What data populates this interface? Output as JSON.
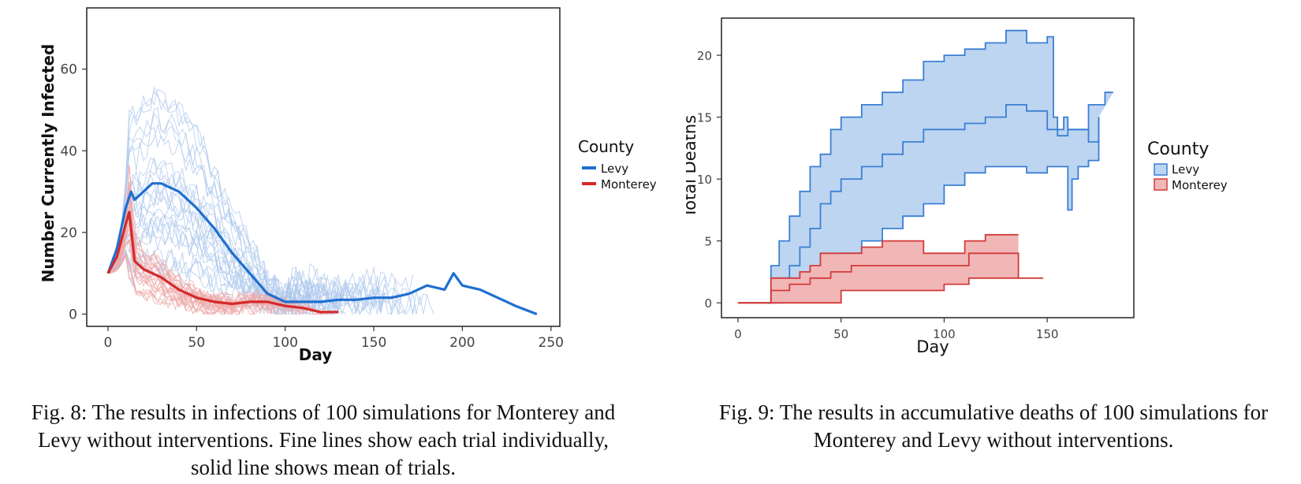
{
  "chart_data": [
    {
      "type": "line",
      "xlabel": "Day",
      "ylabel": "Number Currently Infected",
      "xlim": [
        -12,
        255
      ],
      "ylim": [
        -3,
        75
      ],
      "xticks": [
        "0",
        "50",
        "100",
        "150",
        "200",
        "250"
      ],
      "yticks": [
        "0",
        "20",
        "40",
        "60"
      ],
      "legend": {
        "title": "County",
        "position": "right",
        "entries": [
          "Levy",
          "Monterey"
        ]
      },
      "grid": false,
      "colors": {
        "Levy": "#1f6fd1",
        "Monterey": "#d42a2a",
        "Levy_trial": "#aec8ec",
        "Monterey_trial": "#eeabab"
      },
      "trials_per_county": 100,
      "series": [
        {
          "name": "Levy",
          "x": [
            0,
            5,
            10,
            13,
            15,
            20,
            25,
            30,
            40,
            50,
            60,
            70,
            80,
            90,
            100,
            110,
            120,
            130,
            140,
            150,
            160,
            170,
            180,
            190,
            195,
            200,
            210,
            220,
            230,
            242
          ],
          "y": [
            10,
            16,
            26,
            30,
            28,
            30,
            32,
            32,
            30,
            26,
            21,
            15,
            10,
            5,
            3,
            3,
            3,
            3.5,
            3.5,
            4,
            4,
            5,
            7,
            6,
            10,
            7,
            6,
            4,
            2,
            0
          ]
        },
        {
          "name": "Monterey",
          "x": [
            0,
            5,
            10,
            12,
            15,
            20,
            30,
            40,
            50,
            60,
            70,
            80,
            90,
            100,
            110,
            120,
            130
          ],
          "y": [
            10,
            14,
            22,
            25,
            13,
            11,
            9,
            6,
            4,
            3,
            2.5,
            3,
            3,
            2,
            1.5,
            0.5,
            0.5
          ]
        }
      ]
    },
    {
      "type": "area",
      "xlabel": "Day",
      "ylabel": "Total Deaths",
      "xlim": [
        -8,
        192
      ],
      "ylim": [
        -1.2,
        23
      ],
      "xticks": [
        "0",
        "50",
        "100",
        "150"
      ],
      "yticks": [
        "0",
        "5",
        "10",
        "15",
        "20"
      ],
      "legend": {
        "title": "County",
        "position": "right",
        "entries": [
          "Levy",
          "Monterey"
        ]
      },
      "grid": false,
      "colors": {
        "Levy": "#3b7fd4",
        "Levy_fill": "#bdd5f0",
        "Monterey": "#d23a3a",
        "Monterey_fill": "#f1b7b7"
      },
      "series": [
        {
          "name": "Levy",
          "upper": {
            "x": [
              14,
              16,
              20,
              25,
              30,
              35,
              40,
              45,
              50,
              60,
              70,
              80,
              90,
              100,
              110,
              120,
              130,
              140,
              150,
              153,
              155,
              158,
              160,
              162,
              165,
              170,
              175,
              178,
              182
            ],
            "y": [
              0,
              3,
              5,
              7,
              9,
              11,
              12,
              14,
              15,
              16,
              17,
              18,
              19.5,
              20,
              20.5,
              21,
              22,
              21,
              21.5,
              15,
              14,
              15,
              14,
              14,
              14,
              16,
              16,
              17,
              17
            ]
          },
          "mean": {
            "x": [
              14,
              20,
              25,
              30,
              35,
              40,
              45,
              50,
              60,
              70,
              80,
              90,
              100,
              110,
              120,
              130,
              140,
              150,
              155,
              160,
              165,
              170,
              175
            ],
            "y": [
              0,
              2,
              3,
              4.5,
              6,
              8,
              9,
              10,
              11,
              12,
              13,
              14,
              14,
              14.5,
              15,
              16,
              15.5,
              14,
              13.5,
              14,
              14,
              13,
              15
            ]
          },
          "lower": {
            "x": [
              14,
              22,
              30,
              40,
              50,
              60,
              70,
              80,
              90,
              100,
              110,
              120,
              130,
              140,
              150,
              155,
              160,
              162,
              165,
              170,
              175
            ],
            "y": [
              0,
              0.5,
              2,
              3,
              4,
              5,
              6,
              7,
              8,
              9.5,
              10.5,
              11,
              11,
              10.5,
              11,
              11,
              7.5,
              10,
              11,
              11.5,
              15
            ]
          }
        },
        {
          "name": "Monterey",
          "upper": {
            "x": [
              0,
              16,
              20,
              25,
              30,
              35,
              40,
              45,
              50,
              60,
              70,
              80,
              90,
              100,
              110,
              120,
              130,
              136
            ],
            "y": [
              0,
              2,
              2,
              2,
              2.5,
              3,
              4,
              4,
              4,
              4.5,
              5,
              5,
              4,
              4,
              5,
              5.5,
              5.5,
              5.5
            ]
          },
          "mean": {
            "x": [
              0,
              16,
              25,
              35,
              45,
              55,
              70,
              85,
              100,
              112,
              125,
              136,
              148
            ],
            "y": [
              0,
              1,
              1.5,
              2,
              2.5,
              3,
              3,
              3,
              3,
              4,
              4,
              2,
              2
            ]
          },
          "lower": {
            "x": [
              0,
              16,
              30,
              48,
              50,
              70,
              90,
              100,
              112,
              125,
              136
            ],
            "y": [
              0,
              0,
              0,
              0,
              1,
              1,
              1,
              1.5,
              2,
              2,
              2
            ]
          }
        }
      ]
    }
  ],
  "captions": {
    "fig8": [
      "Fig. 8: The results in infections of 100 simulations for Monterey and",
      "Levy without interventions. Fine lines show each trial individually,",
      "solid line shows mean of trials."
    ],
    "fig9": [
      "Fig. 9: The results in accumulative deaths of 100 simulations for",
      "Monterey and Levy without interventions."
    ]
  }
}
